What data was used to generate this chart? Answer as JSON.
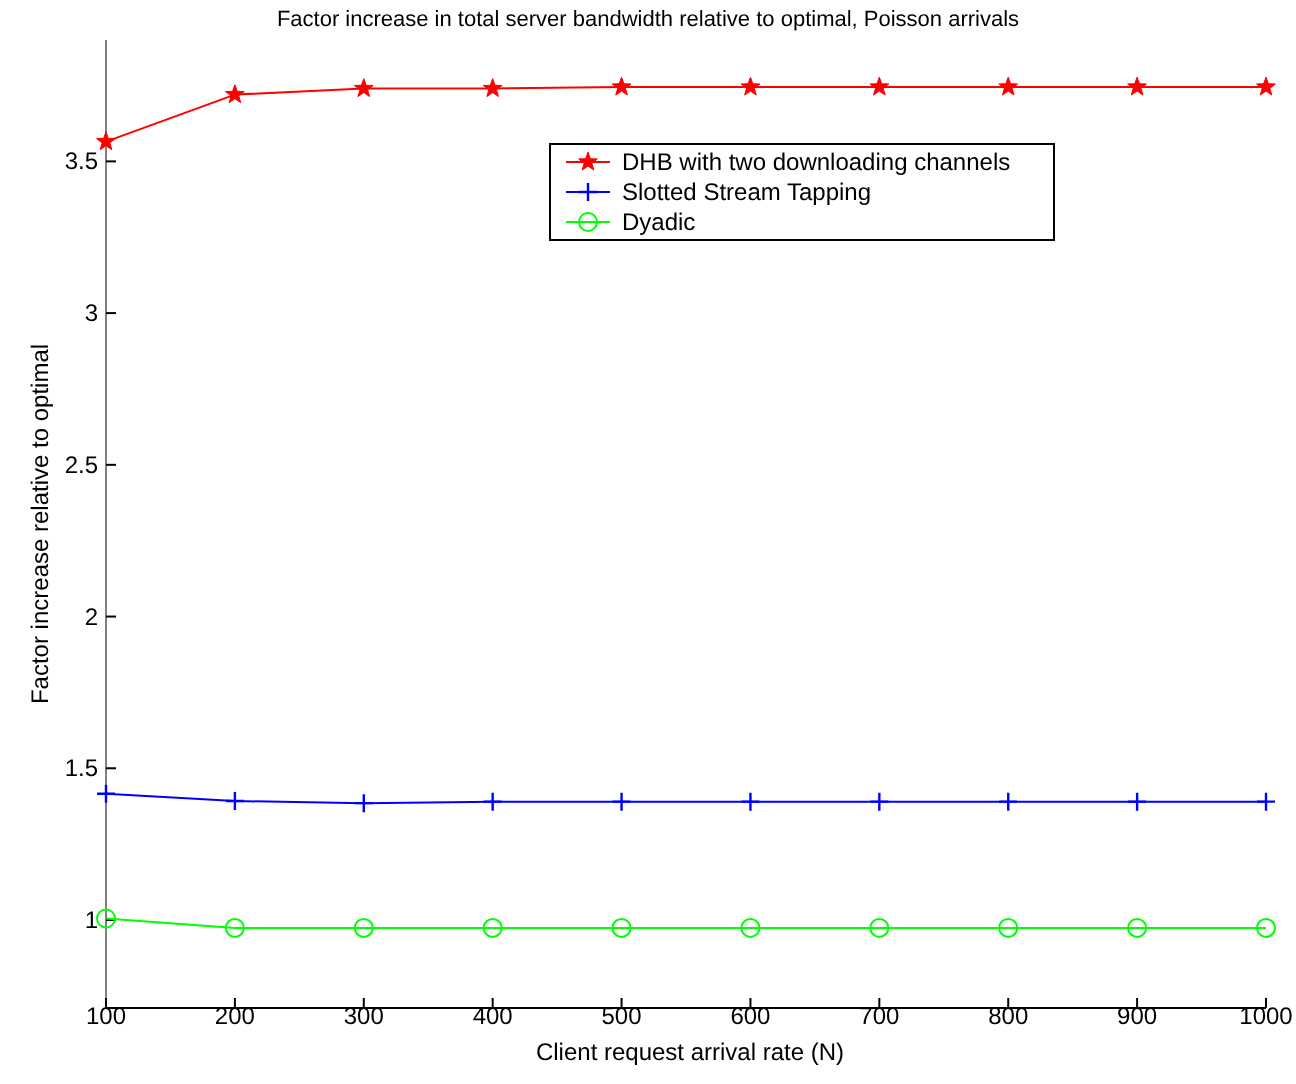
{
  "chart_data": {
    "type": "line",
    "title": "Factor increase in total server bandwidth relative to optimal, Poisson arrivals",
    "xlabel": "Client request arrival rate (N)",
    "ylabel": "Factor increase relative to optimal",
    "x": [
      100,
      200,
      300,
      400,
      500,
      600,
      700,
      800,
      900,
      1000
    ],
    "xlim": [
      100,
      1000
    ],
    "xticks": [
      100,
      200,
      300,
      400,
      500,
      600,
      700,
      800,
      900,
      1000
    ],
    "ylim": [
      0.71,
      3.9
    ],
    "yticks": [
      1,
      1.5,
      2,
      2.5,
      3,
      3.5
    ],
    "grid": false,
    "legend": "top right",
    "line_style": "solid",
    "series": [
      {
        "name": "DHB with two downloading channels",
        "color": "#ff0000",
        "marker": "star",
        "values": [
          3.565,
          3.72,
          3.74,
          3.74,
          3.745,
          3.745,
          3.745,
          3.745,
          3.745,
          3.745
        ]
      },
      {
        "name": "Slotted Stream Tapping",
        "color": "#0000ff",
        "marker": "cross",
        "values": [
          1.416,
          1.392,
          1.385,
          1.39,
          1.39,
          1.39,
          1.39,
          1.39,
          1.39,
          1.39
        ]
      },
      {
        "name": "Dyadic",
        "color": "#00ff00",
        "marker": "circle",
        "values": [
          1.005,
          0.974,
          0.974,
          0.974,
          0.974,
          0.974,
          0.974,
          0.974,
          0.974,
          0.974
        ]
      }
    ]
  }
}
